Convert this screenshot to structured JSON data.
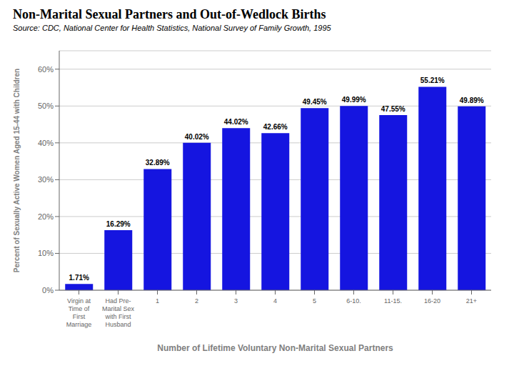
{
  "chart_data": {
    "type": "bar",
    "title": "Non-Marital Sexual Partners and Out-of-Wedlock Births",
    "subtitle": "Source: CDC, National Center for Health Statistics, National Survey of Family Growth, 1995",
    "ylabel": "Percent of Sexually Active Women Aged 15-44 with Children",
    "xlabel": "Number of Lifetime Voluntary Non-Marital Sexual Partners",
    "categories": [
      "Virgin at\nTime of\nFirst\nMarriage",
      "Had Pre-\nMarital Sex\nwith First\nHusband",
      "1",
      "2",
      "3",
      "4",
      "5",
      "6-10.",
      "11-15.",
      "16-20",
      "21+"
    ],
    "values": [
      1.71,
      16.29,
      32.89,
      40.02,
      44.02,
      42.66,
      49.45,
      49.99,
      47.55,
      55.21,
      49.89
    ],
    "value_labels": [
      "1.71%",
      "16.29%",
      "32.89%",
      "40.02%",
      "44.02%",
      "42.66%",
      "49.45%",
      "49.99%",
      "47.55%",
      "55.21%",
      "49.89%"
    ],
    "data_labels": true,
    "color": "#1515e0",
    "ylim": [
      0,
      65
    ],
    "yticks": [
      {
        "value": 0,
        "label": "0%"
      },
      {
        "value": 10,
        "label": "10%"
      },
      {
        "value": 20,
        "label": "20%"
      },
      {
        "value": 30,
        "label": "30%"
      },
      {
        "value": 40,
        "label": "40%"
      },
      {
        "value": 50,
        "label": "50%"
      },
      {
        "value": 60,
        "label": "60%"
      }
    ],
    "grid": true
  }
}
